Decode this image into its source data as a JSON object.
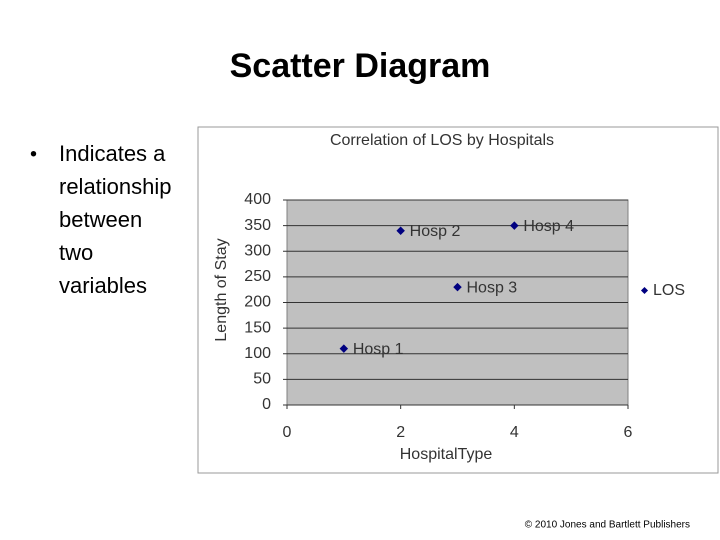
{
  "slide": {
    "title": "Scatter Diagram",
    "bullet_lines": [
      "Indicates a",
      "relationship",
      "between",
      "two",
      "variables"
    ],
    "footer": "© 2010 Jones and Bartlett Publishers"
  },
  "chart_data": {
    "type": "scatter",
    "title": "Correlation of LOS by Hospitals",
    "x_label": "HospitalType",
    "y_label": "Length of Stay",
    "series": [
      {
        "name": "LOS",
        "color": "#000080",
        "x": [
          1,
          2,
          3,
          4
        ],
        "values": [
          110,
          340,
          230,
          350
        ],
        "point_labels": [
          "Hosp 1",
          "Hosp 2",
          "Hosp 3",
          "Hosp 4"
        ]
      }
    ],
    "xlim": [
      0,
      6
    ],
    "xticks": [
      0,
      2,
      4,
      6
    ],
    "ylim": [
      0,
      400
    ],
    "yticks": [
      0,
      50,
      100,
      150,
      200,
      250,
      300,
      350,
      400
    ],
    "grid": true,
    "legend": "right"
  }
}
